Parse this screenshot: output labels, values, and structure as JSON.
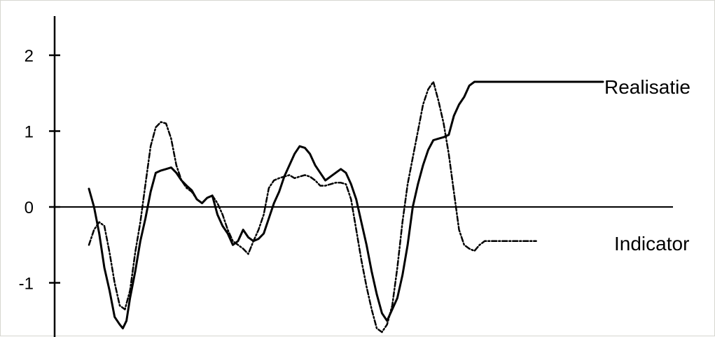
{
  "chart_data": {
    "type": "line",
    "title": "",
    "xlabel": "",
    "ylabel": "",
    "ylim": [
      -1.7,
      2.5
    ],
    "xlim": [
      0,
      100
    ],
    "grid": false,
    "legend": "inline",
    "yticks": [
      {
        "value": 2,
        "label": "2"
      },
      {
        "value": 1,
        "label": "1"
      },
      {
        "value": 0,
        "label": "0"
      },
      {
        "value": -1,
        "label": "-1"
      }
    ],
    "series": [
      {
        "name": "Realisatie",
        "style": "solid",
        "color": "#000000",
        "x": [
          0,
          1,
          2,
          3,
          4,
          5,
          6,
          6.6,
          7.3,
          8,
          9,
          10,
          11,
          12,
          13,
          14,
          15,
          16,
          17,
          18,
          19,
          20,
          21,
          22,
          23,
          24,
          25,
          26,
          27,
          28,
          29,
          30,
          31,
          32,
          33,
          34,
          35,
          36,
          37,
          38,
          39,
          40,
          41,
          42,
          43,
          44,
          45,
          46,
          47,
          48,
          49,
          50,
          51,
          52,
          53,
          54,
          55,
          56,
          57,
          58,
          59,
          60,
          61,
          62,
          63,
          64,
          65,
          66,
          67,
          68,
          69,
          70,
          71,
          72,
          73,
          74,
          75,
          76,
          77,
          78,
          79,
          80,
          81,
          82,
          83,
          84,
          85,
          86,
          87,
          88,
          89,
          90,
          91,
          92,
          93,
          94,
          95,
          96,
          97,
          98,
          99,
          100
        ],
        "y": [
          0.24,
          0,
          -0.35,
          -0.8,
          -1.1,
          -1.45,
          -1.55,
          -1.6,
          -1.5,
          -1.2,
          -0.85,
          -0.45,
          -0.15,
          0.2,
          0.45,
          0.48,
          0.5,
          0.52,
          0.45,
          0.35,
          0.28,
          0.22,
          0.1,
          0.05,
          0.12,
          0.15,
          -0.1,
          -0.25,
          -0.35,
          -0.5,
          -0.45,
          -0.3,
          -0.4,
          -0.45,
          -0.42,
          -0.35,
          -0.15,
          0.05,
          0.2,
          0.4,
          0.55,
          0.7,
          0.8,
          0.78,
          0.7,
          0.55,
          0.45,
          0.35,
          0.4,
          0.45,
          0.5,
          0.45,
          0.3,
          0.1,
          -0.2,
          -0.5,
          -0.85,
          -1.15,
          -1.4,
          -1.5,
          -1.35,
          -1.2,
          -0.9,
          -0.5,
          0,
          0.3,
          0.55,
          0.75,
          0.88,
          0.9,
          0.92,
          0.95,
          1.2,
          1.35,
          1.45,
          1.6,
          1.65,
          1.65,
          1.65,
          1.65,
          1.65,
          1.65,
          1.65,
          1.65,
          1.65,
          1.65,
          1.65,
          1.65,
          1.65,
          1.65,
          1.65,
          1.65,
          1.65,
          1.65,
          1.65,
          1.65,
          1.65,
          1.65,
          1.65,
          1.65,
          1.65,
          1.65
        ]
      },
      {
        "name": "Indicator",
        "style": "dashdot",
        "color": "#000000",
        "x": [
          0,
          1,
          2,
          3,
          4,
          5,
          6,
          7,
          8,
          9,
          10,
          11,
          12,
          13,
          14,
          15,
          16,
          17,
          18,
          19,
          20,
          21,
          22,
          23,
          24,
          25,
          26,
          27,
          28,
          29,
          30,
          31,
          32,
          33,
          34,
          35,
          36,
          37,
          38,
          39,
          40,
          41,
          42,
          43,
          44,
          45,
          46,
          47,
          48,
          49,
          50,
          51,
          52,
          53,
          54,
          55,
          56,
          57,
          58,
          59,
          60,
          61,
          62,
          63,
          64,
          65,
          66,
          67,
          68,
          69,
          70,
          71,
          72,
          73,
          74,
          75,
          76,
          77,
          78,
          79,
          80,
          81,
          82,
          83,
          84,
          85,
          86,
          87
        ],
        "y": [
          -0.5,
          -0.3,
          -0.2,
          -0.25,
          -0.6,
          -1.0,
          -1.3,
          -1.35,
          -1.1,
          -0.6,
          -0.2,
          0.3,
          0.8,
          1.05,
          1.12,
          1.1,
          0.9,
          0.55,
          0.35,
          0.25,
          0.2,
          0.1,
          0.05,
          0.12,
          0.15,
          0.05,
          -0.1,
          -0.3,
          -0.45,
          -0.5,
          -0.55,
          -0.62,
          -0.45,
          -0.3,
          -0.1,
          0.25,
          0.35,
          0.38,
          0.4,
          0.42,
          0.38,
          0.4,
          0.42,
          0.4,
          0.35,
          0.28,
          0.28,
          0.3,
          0.32,
          0.32,
          0.3,
          0.1,
          -0.3,
          -0.7,
          -1.05,
          -1.35,
          -1.6,
          -1.65,
          -1.55,
          -1.3,
          -0.8,
          -0.2,
          0.3,
          0.65,
          1.0,
          1.35,
          1.55,
          1.65,
          1.4,
          1.1,
          0.7,
          0.2,
          -0.3,
          -0.5,
          -0.55,
          -0.58,
          -0.5,
          -0.45,
          -0.45,
          -0.45,
          -0.45,
          -0.45,
          -0.45,
          -0.45,
          -0.45,
          -0.45,
          -0.45,
          -0.45
        ]
      }
    ]
  }
}
